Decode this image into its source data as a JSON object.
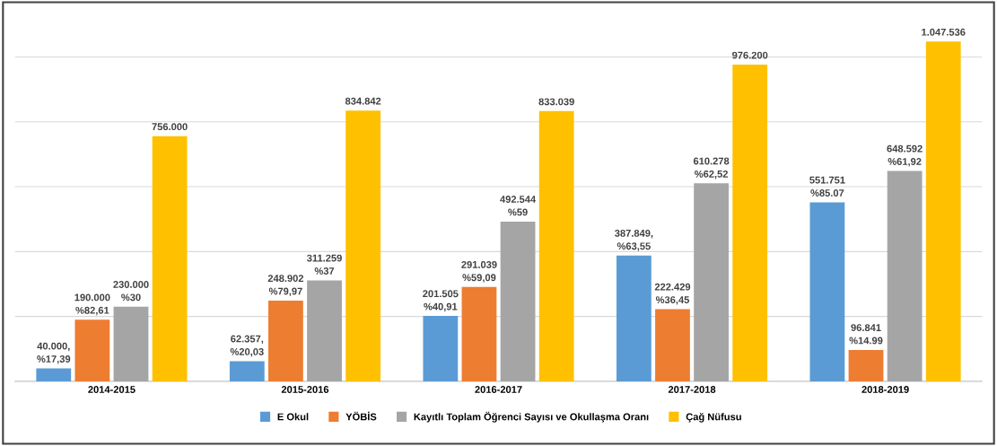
{
  "chart_data": {
    "type": "bar",
    "categories": [
      "2014-2015",
      "2015-2016",
      "2016-2017",
      "2017-2018",
      "2018-2019"
    ],
    "series": [
      {
        "name": "E Okul",
        "color": "#5b9bd5",
        "values": [
          40000,
          62357,
          201505,
          387849,
          551751
        ],
        "value_labels": [
          "40.000,\n%17,39",
          "62.357,\n%20,03",
          "201.505\n%40,91",
          "387.849,\n%63,55",
          "551.751\n%85.07"
        ]
      },
      {
        "name": "YÖBİS",
        "color": "#ed7d31",
        "values": [
          190000,
          248902,
          291039,
          222429,
          96841
        ],
        "value_labels": [
          "190.000\n%82,61",
          "248.902\n%79,97",
          "291.039\n%59,09",
          "222.429\n%36,45",
          "96.841\n%14.99"
        ]
      },
      {
        "name": "Kayıtlı Toplam Öğrenci Sayısı ve Okullaşma Oranı",
        "color": "#a5a5a5",
        "values": [
          230000,
          311259,
          492544,
          610278,
          648592
        ],
        "value_labels": [
          "230.000\n%30",
          "311.259\n%37",
          "492.544\n%59",
          "610.278\n%62,52",
          "648.592\n%61,92"
        ]
      },
      {
        "name": "Çağ Nüfusu",
        "color": "#ffc000",
        "values": [
          756000,
          834842,
          833039,
          976200,
          1047536
        ],
        "value_labels": [
          "756.000",
          "834.842",
          "833.039",
          "976.200",
          "1.047.536"
        ]
      }
    ],
    "yticks": [
      {
        "value": 0,
        "label": null
      },
      {
        "value": 200000,
        "label": null
      },
      {
        "value": 400000,
        "label": null
      },
      {
        "value": 600000,
        "label": null
      },
      {
        "value": 800000,
        "label": null
      },
      {
        "value": 1000000,
        "label": null
      }
    ],
    "tick_labels": "x",
    "grid": "y",
    "legend": "bottom",
    "marker": "square"
  }
}
